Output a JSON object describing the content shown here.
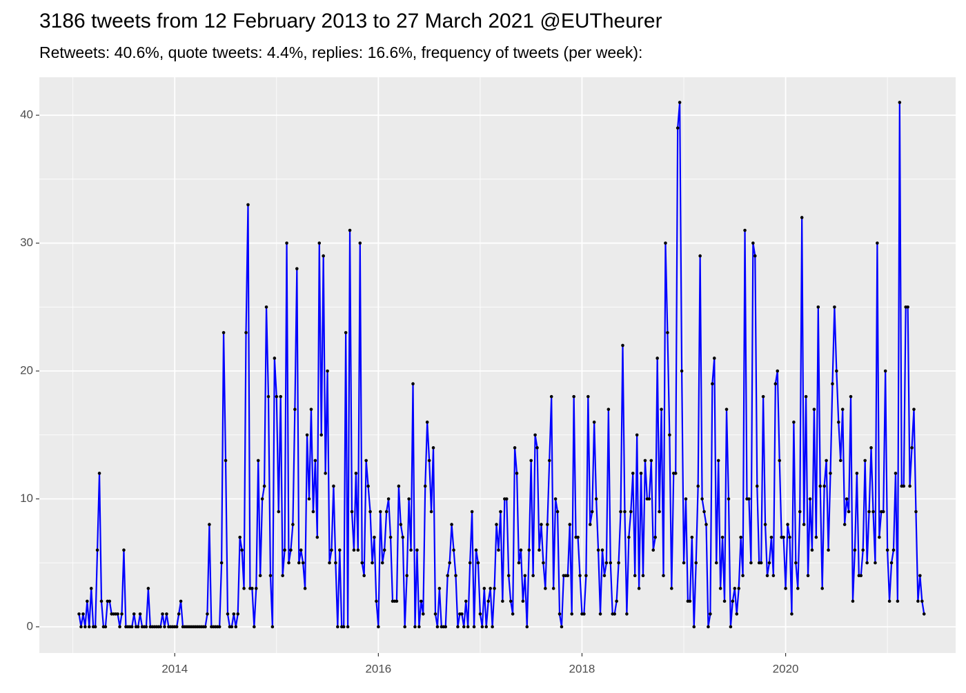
{
  "chart_data": {
    "type": "line",
    "title": "3186 tweets from 12 February 2013 to 27 March 2021 @EUTheurer",
    "subtitle": "Retweets: 40.6%, quote tweets: 4.4%, replies: 16.6%, frequency of tweets (per week):",
    "xlim": [
      2012.67,
      2021.67
    ],
    "ylim": [
      -2.05,
      42.97
    ],
    "xticks": [
      2014,
      2016,
      2018,
      2020
    ],
    "yticks": [
      0,
      10,
      20,
      30,
      40
    ],
    "minor_xticks": [
      2013,
      2015,
      2017,
      2019,
      2021
    ],
    "minor_yticks": [
      5,
      15,
      25,
      35
    ],
    "grid": true,
    "line_color": "#0000ff",
    "point_color": "#000000",
    "x": [
      2013.06,
      2013.08,
      2013.1,
      2013.12,
      2013.14,
      2013.16,
      2013.18,
      2013.2,
      2013.22,
      2013.24,
      2013.26,
      2013.28,
      2013.3,
      2013.32,
      2013.34,
      2013.36,
      2013.38,
      2013.4,
      2013.42,
      2013.44,
      2013.46,
      2013.48,
      2013.5,
      2013.52,
      2013.54,
      2013.56,
      2013.58,
      2013.6,
      2013.62,
      2013.64,
      2013.66,
      2013.68,
      2013.7,
      2013.72,
      2013.74,
      2013.76,
      2013.78,
      2013.8,
      2013.82,
      2013.84,
      2013.86,
      2013.88,
      2013.9,
      2013.92,
      2013.94,
      2013.96,
      2013.98,
      2014,
      2014.02,
      2014.04,
      2014.06,
      2014.08,
      2014.1,
      2014.12,
      2014.14,
      2014.16,
      2014.18,
      2014.2,
      2014.22,
      2014.24,
      2014.26,
      2014.28,
      2014.3,
      2014.32,
      2014.34,
      2014.36,
      2014.38,
      2014.4,
      2014.42,
      2014.44,
      2014.46,
      2014.48,
      2014.5,
      2014.52,
      2014.54,
      2014.56,
      2014.58,
      2014.6,
      2014.62,
      2014.64,
      2014.66,
      2014.68,
      2014.7,
      2014.72,
      2014.74,
      2014.76,
      2014.78,
      2014.8,
      2014.82,
      2014.84,
      2014.86,
      2014.88,
      2014.9,
      2014.92,
      2014.94,
      2014.96,
      2014.98,
      2015,
      2015.02,
      2015.04,
      2015.06,
      2015.08,
      2015.1,
      2015.12,
      2015.14,
      2015.16,
      2015.18,
      2015.2,
      2015.22,
      2015.24,
      2015.26,
      2015.28,
      2015.3,
      2015.32,
      2015.34,
      2015.36,
      2015.38,
      2015.4,
      2015.42,
      2015.44,
      2015.46,
      2015.48,
      2015.5,
      2015.52,
      2015.54,
      2015.56,
      2015.58,
      2015.6,
      2015.62,
      2015.64,
      2015.66,
      2015.68,
      2015.7,
      2015.72,
      2015.74,
      2015.76,
      2015.78,
      2015.8,
      2015.82,
      2015.84,
      2015.86,
      2015.88,
      2015.9,
      2015.92,
      2015.94,
      2015.96,
      2015.98,
      2016,
      2016.02,
      2016.04,
      2016.06,
      2016.08,
      2016.1,
      2016.12,
      2016.14,
      2016.16,
      2016.18,
      2016.2,
      2016.22,
      2016.24,
      2016.26,
      2016.28,
      2016.3,
      2016.32,
      2016.34,
      2016.36,
      2016.38,
      2016.4,
      2016.42,
      2016.44,
      2016.46,
      2016.48,
      2016.5,
      2016.52,
      2016.54,
      2016.56,
      2016.58,
      2016.6,
      2016.62,
      2016.64,
      2016.66,
      2016.68,
      2016.7,
      2016.72,
      2016.74,
      2016.76,
      2016.78,
      2016.8,
      2016.82,
      2016.84,
      2016.86,
      2016.88,
      2016.9,
      2016.92,
      2016.94,
      2016.96,
      2016.98,
      2017,
      2017.02,
      2017.04,
      2017.06,
      2017.08,
      2017.1,
      2017.12,
      2017.14,
      2017.16,
      2017.18,
      2017.2,
      2017.22,
      2017.24,
      2017.26,
      2017.28,
      2017.3,
      2017.32,
      2017.34,
      2017.36,
      2017.38,
      2017.4,
      2017.42,
      2017.44,
      2017.46,
      2017.48,
      2017.5,
      2017.52,
      2017.54,
      2017.56,
      2017.58,
      2017.6,
      2017.62,
      2017.64,
      2017.66,
      2017.68,
      2017.7,
      2017.72,
      2017.74,
      2017.76,
      2017.78,
      2017.8,
      2017.82,
      2017.84,
      2017.86,
      2017.88,
      2017.9,
      2017.92,
      2017.94,
      2017.96,
      2017.98,
      2018,
      2018.02,
      2018.04,
      2018.06,
      2018.08,
      2018.1,
      2018.12,
      2018.14,
      2018.16,
      2018.18,
      2018.2,
      2018.22,
      2018.24,
      2018.26,
      2018.28,
      2018.3,
      2018.32,
      2018.34,
      2018.36,
      2018.38,
      2018.4,
      2018.42,
      2018.44,
      2018.46,
      2018.48,
      2018.5,
      2018.52,
      2018.54,
      2018.56,
      2018.58,
      2018.6,
      2018.62,
      2018.64,
      2018.66,
      2018.68,
      2018.7,
      2018.72,
      2018.74,
      2018.76,
      2018.78,
      2018.8,
      2018.82,
      2018.84,
      2018.86,
      2018.88,
      2018.9,
      2018.92,
      2018.94,
      2018.96,
      2018.98,
      2019,
      2019.02,
      2019.04,
      2019.06,
      2019.08,
      2019.1,
      2019.12,
      2019.14,
      2019.16,
      2019.18,
      2019.2,
      2019.22,
      2019.24,
      2019.26,
      2019.28,
      2019.3,
      2019.32,
      2019.34,
      2019.36,
      2019.38,
      2019.4,
      2019.42,
      2019.44,
      2019.46,
      2019.48,
      2019.5,
      2019.52,
      2019.54,
      2019.56,
      2019.58,
      2019.6,
      2019.62,
      2019.64,
      2019.66,
      2019.68,
      2019.7,
      2019.72,
      2019.74,
      2019.76,
      2019.78,
      2019.8,
      2019.82,
      2019.84,
      2019.86,
      2019.88,
      2019.9,
      2019.92,
      2019.94,
      2019.96,
      2019.98,
      2020,
      2020.02,
      2020.04,
      2020.06,
      2020.08,
      2020.1,
      2020.12,
      2020.14,
      2020.16,
      2020.18,
      2020.2,
      2020.22,
      2020.24,
      2020.26,
      2020.28,
      2020.3,
      2020.32,
      2020.34,
      2020.36,
      2020.38,
      2020.4,
      2020.42,
      2020.44,
      2020.46,
      2020.48,
      2020.5,
      2020.52,
      2020.54,
      2020.56,
      2020.58,
      2020.6,
      2020.62,
      2020.64,
      2020.66,
      2020.68,
      2020.7,
      2020.72,
      2020.74,
      2020.76,
      2020.78,
      2020.8,
      2020.82,
      2020.84,
      2020.86,
      2020.88,
      2020.9,
      2020.92,
      2020.94,
      2020.96,
      2020.98,
      2021,
      2021.02,
      2021.04,
      2021.06,
      2021.08,
      2021.1,
      2021.12,
      2021.14,
      2021.16,
      2021.18,
      2021.2,
      2021.22,
      2021.24,
      2021.26,
      2021.28,
      2021.3,
      2021.32,
      2021.34,
      2021.36
    ],
    "values": [
      1,
      0,
      1,
      0,
      2,
      0,
      3,
      0,
      0,
      6,
      12,
      2,
      0,
      0,
      2,
      2,
      1,
      1,
      1,
      1,
      0,
      1,
      6,
      0,
      0,
      0,
      0,
      1,
      0,
      0,
      1,
      0,
      0,
      0,
      3,
      0,
      0,
      0,
      0,
      0,
      0,
      1,
      0,
      1,
      0,
      0,
      0,
      0,
      0,
      1,
      2,
      0,
      0,
      0,
      0,
      0,
      0,
      0,
      0,
      0,
      0,
      0,
      0,
      1,
      8,
      0,
      0,
      0,
      0,
      0,
      5,
      23,
      13,
      1,
      0,
      0,
      1,
      0,
      1,
      7,
      6,
      3,
      23,
      33,
      3,
      3,
      0,
      3,
      13,
      4,
      10,
      11,
      25,
      18,
      4,
      0,
      21,
      18,
      9,
      18,
      4,
      6,
      30,
      5,
      6,
      8,
      17,
      28,
      5,
      6,
      5,
      3,
      15,
      10,
      17,
      9,
      13,
      7,
      30,
      15,
      29,
      12,
      20,
      5,
      6,
      11,
      5,
      0,
      6,
      0,
      0,
      23,
      0,
      31,
      9,
      6,
      12,
      6,
      30,
      5,
      4,
      13,
      11,
      9,
      5,
      7,
      2,
      0,
      9,
      5,
      6,
      9,
      10,
      7,
      2,
      2,
      2,
      11,
      8,
      7,
      0,
      4,
      10,
      6,
      19,
      0,
      6,
      0,
      2,
      1,
      11,
      16,
      13,
      9,
      14,
      1,
      0,
      3,
      0,
      0,
      0,
      4,
      5,
      8,
      6,
      4,
      0,
      1,
      1,
      0,
      2,
      0,
      5,
      9,
      0,
      6,
      5,
      1,
      0,
      3,
      0,
      2,
      3,
      0,
      3,
      8,
      6,
      9,
      2,
      10,
      10,
      4,
      2,
      1,
      14,
      12,
      5,
      6,
      2,
      4,
      0,
      6,
      13,
      4,
      15,
      14,
      6,
      8,
      5,
      3,
      8,
      13,
      18,
      3,
      10,
      9,
      1,
      0,
      4,
      4,
      4,
      8,
      1,
      18,
      7,
      7,
      4,
      1,
      1,
      4,
      18,
      8,
      9,
      16,
      10,
      6,
      1,
      6,
      4,
      5,
      17,
      5,
      1,
      1,
      2,
      5,
      9,
      22,
      9,
      1,
      7,
      9,
      12,
      4,
      15,
      3,
      12,
      4,
      13,
      10,
      10,
      13,
      6,
      7,
      21,
      9,
      17,
      4,
      30,
      23,
      15,
      3,
      12,
      12,
      39,
      41,
      20,
      5,
      10,
      2,
      2,
      7,
      0,
      5,
      11,
      29,
      10,
      9,
      8,
      0,
      1,
      19,
      21,
      5,
      13,
      3,
      7,
      2,
      17,
      10,
      0,
      2,
      3,
      1,
      3,
      7,
      4,
      31,
      10,
      10,
      5,
      30,
      29,
      11,
      5,
      5,
      18,
      8,
      4,
      5,
      7,
      4,
      19,
      20,
      13,
      7,
      7,
      3,
      8,
      7,
      1,
      16,
      5,
      3,
      9,
      32,
      8,
      18,
      4,
      10,
      6,
      17,
      7,
      25,
      11,
      3,
      11,
      13,
      6,
      12,
      19,
      25,
      20,
      16,
      13,
      17,
      8,
      10,
      9,
      18,
      2,
      6,
      12,
      4,
      4,
      6,
      13,
      5,
      9,
      14,
      9,
      5,
      30,
      7,
      9,
      9,
      20,
      6,
      2,
      5,
      6,
      12,
      2,
      41,
      11,
      11,
      25,
      25,
      11,
      14,
      17,
      9,
      2,
      4,
      2,
      1
    ]
  }
}
